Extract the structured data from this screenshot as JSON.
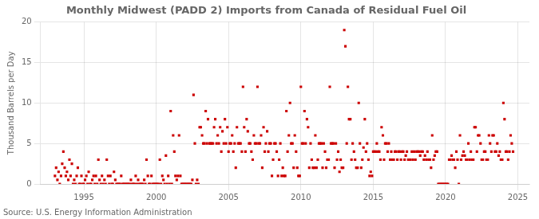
{
  "chart_data": {
    "type": "scatter",
    "title": "Monthly Midwest (PADD 2) Imports from Canada of Residual Fuel Oil",
    "y_label": "Thousand Barrels per Day",
    "source": "Source: U.S. Energy Information Administration",
    "color": "#cc0000",
    "marker": "square",
    "grid": true,
    "xlim": [
      1992.0,
      2025.8
    ],
    "xticks": [
      1995,
      2000,
      2005,
      2010,
      2015,
      2020,
      2025
    ],
    "ylim": [
      0,
      20
    ],
    "yticks": [
      0,
      5,
      10,
      15,
      20
    ],
    "x": [
      1993.0,
      1993.08,
      1993.17,
      1993.25,
      1993.33,
      1993.42,
      1993.5,
      1993.58,
      1993.67,
      1993.75,
      1993.83,
      1993.92,
      1994.0,
      1994.08,
      1994.17,
      1994.25,
      1994.33,
      1994.42,
      1994.5,
      1994.58,
      1994.67,
      1994.75,
      1994.83,
      1994.92,
      1995.0,
      1995.08,
      1995.17,
      1995.25,
      1995.33,
      1995.42,
      1995.5,
      1995.58,
      1995.67,
      1995.75,
      1995.83,
      1995.92,
      1996.0,
      1996.08,
      1996.17,
      1996.25,
      1996.33,
      1996.42,
      1996.5,
      1996.58,
      1996.67,
      1996.75,
      1996.83,
      1996.92,
      1997.0,
      1997.08,
      1997.17,
      1997.25,
      1997.33,
      1997.42,
      1997.5,
      1997.58,
      1997.67,
      1997.75,
      1997.83,
      1997.92,
      1998.0,
      1998.08,
      1998.17,
      1998.25,
      1998.33,
      1998.42,
      1998.5,
      1998.58,
      1998.67,
      1998.75,
      1998.83,
      1998.92,
      1999.0,
      1999.08,
      1999.17,
      1999.25,
      1999.33,
      1999.42,
      1999.5,
      1999.58,
      1999.67,
      1999.75,
      1999.83,
      1999.92,
      2000.0,
      2000.08,
      2000.17,
      2000.25,
      2000.33,
      2000.42,
      2000.5,
      2000.58,
      2000.67,
      2000.75,
      2000.83,
      2000.92,
      2001.0,
      2001.08,
      2001.17,
      2001.25,
      2001.33,
      2001.42,
      2001.5,
      2001.58,
      2001.67,
      2001.75,
      2001.83,
      2001.92,
      2002.0,
      2002.08,
      2002.17,
      2002.25,
      2002.33,
      2002.42,
      2002.5,
      2002.58,
      2002.67,
      2002.75,
      2002.83,
      2002.92,
      2003.0,
      2003.08,
      2003.17,
      2003.25,
      2003.33,
      2003.42,
      2003.5,
      2003.58,
      2003.67,
      2003.75,
      2003.83,
      2003.92,
      2004.0,
      2004.08,
      2004.17,
      2004.25,
      2004.33,
      2004.42,
      2004.5,
      2004.58,
      2004.67,
      2004.75,
      2004.83,
      2004.92,
      2005.0,
      2005.08,
      2005.17,
      2005.25,
      2005.33,
      2005.42,
      2005.5,
      2005.58,
      2005.67,
      2005.75,
      2005.83,
      2005.92,
      2006.0,
      2006.08,
      2006.17,
      2006.25,
      2006.33,
      2006.42,
      2006.5,
      2006.58,
      2006.67,
      2006.75,
      2006.83,
      2006.92,
      2007.0,
      2007.08,
      2007.17,
      2007.25,
      2007.33,
      2007.42,
      2007.5,
      2007.58,
      2007.67,
      2007.75,
      2007.83,
      2007.92,
      2008.0,
      2008.08,
      2008.17,
      2008.25,
      2008.33,
      2008.42,
      2008.5,
      2008.58,
      2008.67,
      2008.75,
      2008.83,
      2008.92,
      2009.0,
      2009.08,
      2009.17,
      2009.25,
      2009.33,
      2009.42,
      2009.5,
      2009.58,
      2009.67,
      2009.75,
      2009.83,
      2009.92,
      2010.0,
      2010.08,
      2010.17,
      2010.25,
      2010.33,
      2010.42,
      2010.5,
      2010.58,
      2010.67,
      2010.75,
      2010.83,
      2010.92,
      2011.0,
      2011.08,
      2011.17,
      2011.25,
      2011.33,
      2011.42,
      2011.5,
      2011.58,
      2011.67,
      2011.75,
      2011.83,
      2011.92,
      2012.0,
      2012.08,
      2012.17,
      2012.25,
      2012.33,
      2012.42,
      2012.5,
      2012.58,
      2012.67,
      2012.75,
      2012.83,
      2012.92,
      2013.0,
      2013.08,
      2013.17,
      2013.25,
      2013.33,
      2013.42,
      2013.5,
      2013.58,
      2013.67,
      2013.75,
      2013.83,
      2013.92,
      2014.0,
      2014.08,
      2014.17,
      2014.25,
      2014.33,
      2014.42,
      2014.5,
      2014.58,
      2014.67,
      2014.75,
      2014.83,
      2014.92,
      2015.0,
      2015.08,
      2015.17,
      2015.25,
      2015.33,
      2015.42,
      2015.5,
      2015.58,
      2015.67,
      2015.75,
      2015.83,
      2015.92,
      2016.0,
      2016.08,
      2016.17,
      2016.25,
      2016.33,
      2016.42,
      2016.5,
      2016.58,
      2016.67,
      2016.75,
      2016.83,
      2016.92,
      2017.0,
      2017.08,
      2017.17,
      2017.25,
      2017.33,
      2017.42,
      2017.5,
      2017.58,
      2017.67,
      2017.75,
      2017.83,
      2017.92,
      2018.0,
      2018.08,
      2018.17,
      2018.25,
      2018.33,
      2018.42,
      2018.5,
      2018.58,
      2018.67,
      2018.75,
      2018.83,
      2018.92,
      2019.0,
      2019.08,
      2019.17,
      2019.25,
      2019.33,
      2019.42,
      2019.5,
      2019.58,
      2019.67,
      2019.75,
      2019.83,
      2019.92,
      2020.0,
      2020.08,
      2020.17,
      2020.25,
      2020.33,
      2020.42,
      2020.5,
      2020.58,
      2020.67,
      2020.75,
      2020.83,
      2020.92,
      2021.0,
      2021.08,
      2021.17,
      2021.25,
      2021.33,
      2021.42,
      2021.5,
      2021.58,
      2021.67,
      2021.75,
      2021.83,
      2021.92,
      2022.0,
      2022.08,
      2022.17,
      2022.25,
      2022.33,
      2022.42,
      2022.5,
      2022.58,
      2022.67,
      2022.75,
      2022.83,
      2022.92,
      2023.0,
      2023.08,
      2023.17,
      2023.25,
      2023.33,
      2023.42,
      2023.5,
      2023.58,
      2023.67,
      2023.75,
      2023.83,
      2023.92,
      2024.0,
      2024.08,
      2024.17,
      2024.25,
      2024.33,
      2024.42,
      2024.5,
      2024.58,
      2024.67
    ],
    "values": [
      1.0,
      2.0,
      0.5,
      1.5,
      0.0,
      1.0,
      2.5,
      4.0,
      2.0,
      1.0,
      1.5,
      0.5,
      3.0,
      1.0,
      2.5,
      0.0,
      0.5,
      0.0,
      1.0,
      2.0,
      0.0,
      0.0,
      1.0,
      0.0,
      0.0,
      0.5,
      1.0,
      0.0,
      1.5,
      0.0,
      0.0,
      0.5,
      1.0,
      0.0,
      1.0,
      0.0,
      3.0,
      0.5,
      0.0,
      1.0,
      0.0,
      0.5,
      0.0,
      3.0,
      1.0,
      0.0,
      1.0,
      0.0,
      0.0,
      1.5,
      0.5,
      0.0,
      0.0,
      0.0,
      0.0,
      1.0,
      0.0,
      0.0,
      0.0,
      0.0,
      0.0,
      0.0,
      0.0,
      0.5,
      0.0,
      0.0,
      0.0,
      1.0,
      0.0,
      0.5,
      0.0,
      0.0,
      0.0,
      0.0,
      0.5,
      0.0,
      3.0,
      1.0,
      0.0,
      0.0,
      1.0,
      0.0,
      0.0,
      0.0,
      0.0,
      0.0,
      0.0,
      3.0,
      0.0,
      1.0,
      0.5,
      0.0,
      3.5,
      0.0,
      1.0,
      0.0,
      9.0,
      0.0,
      6.0,
      4.0,
      1.0,
      0.5,
      1.0,
      6.0,
      1.0,
      0.0,
      0.0,
      0.0,
      0.0,
      0.0,
      0.0,
      0.0,
      0.0,
      0.0,
      0.5,
      11.0,
      5.0,
      0.0,
      0.5,
      0.0,
      7.0,
      7.0,
      6.0,
      5.0,
      5.0,
      9.0,
      5.0,
      8.0,
      5.0,
      5.0,
      5.0,
      5.0,
      7.0,
      8.0,
      5.0,
      6.0,
      5.0,
      7.0,
      4.0,
      6.5,
      5.0,
      8.0,
      5.0,
      7.0,
      4.0,
      5.0,
      5.0,
      6.0,
      4.0,
      5.0,
      2.0,
      7.0,
      5.0,
      5.0,
      5.0,
      4.0,
      12.0,
      7.0,
      4.0,
      8.0,
      6.5,
      5.0,
      5.0,
      4.0,
      3.0,
      6.0,
      5.0,
      5.0,
      12.0,
      5.0,
      5.0,
      6.0,
      2.0,
      7.0,
      4.0,
      5.0,
      6.5,
      4.0,
      5.0,
      5.0,
      1.0,
      3.0,
      5.0,
      5.0,
      4.0,
      1.0,
      3.0,
      5.0,
      1.0,
      2.0,
      1.0,
      1.0,
      9.0,
      4.0,
      6.0,
      10.0,
      5.0,
      5.0,
      2.0,
      6.0,
      4.0,
      2.0,
      1.0,
      1.0,
      12.0,
      5.0,
      5.0,
      9.0,
      5.0,
      8.0,
      7.0,
      2.0,
      5.0,
      3.0,
      2.0,
      2.0,
      6.0,
      2.0,
      3.0,
      5.0,
      5.0,
      5.0,
      2.0,
      5.0,
      4.0,
      2.0,
      3.0,
      3.0,
      12.0,
      5.0,
      5.0,
      5.0,
      2.0,
      5.0,
      3.0,
      4.0,
      1.5,
      3.0,
      2.0,
      2.0,
      19.0,
      17.0,
      5.0,
      12.0,
      8.0,
      8.0,
      3.0,
      5.0,
      4.0,
      3.0,
      2.0,
      2.0,
      10.0,
      5.0,
      2.0,
      3.0,
      4.5,
      8.0,
      4.0,
      5.0,
      3.0,
      1.0,
      1.5,
      1.0,
      4.0,
      4.0,
      4.0,
      5.0,
      4.0,
      4.0,
      3.0,
      7.0,
      6.0,
      3.0,
      5.0,
      5.0,
      4.0,
      5.0,
      3.0,
      4.0,
      3.0,
      3.0,
      4.0,
      4.0,
      3.0,
      4.0,
      4.0,
      3.0,
      4.0,
      4.0,
      3.0,
      3.5,
      4.0,
      3.0,
      3.0,
      3.0,
      4.0,
      3.0,
      4.0,
      3.0,
      4.0,
      4.0,
      4.0,
      3.5,
      4.0,
      4.0,
      3.0,
      3.5,
      3.0,
      4.0,
      3.0,
      3.0,
      2.0,
      6.0,
      3.0,
      3.5,
      4.0,
      4.0,
      0.0,
      0.0,
      0.0,
      0.0,
      0.0,
      0.0,
      0.0,
      0.0,
      0.0,
      3.0,
      3.0,
      3.5,
      3.0,
      3.0,
      2.0,
      4.0,
      3.0,
      0.0,
      6.0,
      3.0,
      3.5,
      4.0,
      3.5,
      3.0,
      3.0,
      5.0,
      3.0,
      4.0,
      3.0,
      3.0,
      7.0,
      7.0,
      4.0,
      6.0,
      6.0,
      5.0,
      3.0,
      3.0,
      4.0,
      4.0,
      3.0,
      3.0,
      6.0,
      5.0,
      4.0,
      6.0,
      6.0,
      4.0,
      4.0,
      5.0,
      3.5,
      4.0,
      3.0,
      3.0,
      10.0,
      8.0,
      4.0,
      4.0,
      3.0,
      4.0,
      6.0,
      5.0,
      4.0
    ]
  }
}
